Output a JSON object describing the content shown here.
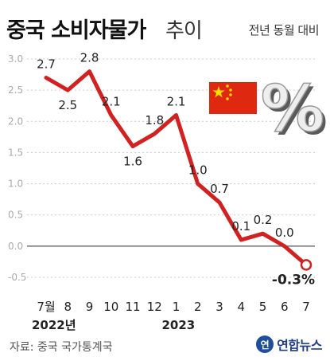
{
  "header": {
    "title_main": "중국 소비자물가",
    "title_sub": "추이",
    "subtitle": "전년 동월 대비"
  },
  "footer": {
    "source": "자료: 중국 국가통계국",
    "logo_text": "연합뉴스",
    "logo_mark": "연"
  },
  "colors": {
    "line": "#d32020",
    "flag_red": "#de2910",
    "flag_star": "#ffde00",
    "grid": "#cccccc",
    "percent_sign": "#9a9a9a"
  },
  "icons": [
    "china-flag-icon",
    "percent-icon"
  ],
  "chart_data": {
    "type": "line",
    "categories": [
      "7월",
      "8",
      "9",
      "10",
      "11",
      "12",
      "1",
      "2",
      "3",
      "4",
      "5",
      "6",
      "7"
    ],
    "year_labels": [
      {
        "label": "2022년",
        "at": 0
      },
      {
        "label": "2023",
        "at": 6
      }
    ],
    "values": [
      2.7,
      2.5,
      2.8,
      2.1,
      1.6,
      1.8,
      2.1,
      1.0,
      0.7,
      0.1,
      0.2,
      0.0,
      -0.3
    ],
    "data_labels": [
      "2.7",
      "2.5",
      "2.8",
      "2.1",
      "1.6",
      "1.8",
      "2.1",
      "1.0",
      "0.7",
      "0.1",
      "0.2",
      "0.0",
      "-0.3%"
    ],
    "yticks": [
      "3.0",
      "2.5",
      "2.0",
      "1.5",
      "1.0",
      "0.5",
      "0.0",
      "-0.5"
    ],
    "ylim": [
      -0.5,
      3.0
    ],
    "grid": true
  }
}
